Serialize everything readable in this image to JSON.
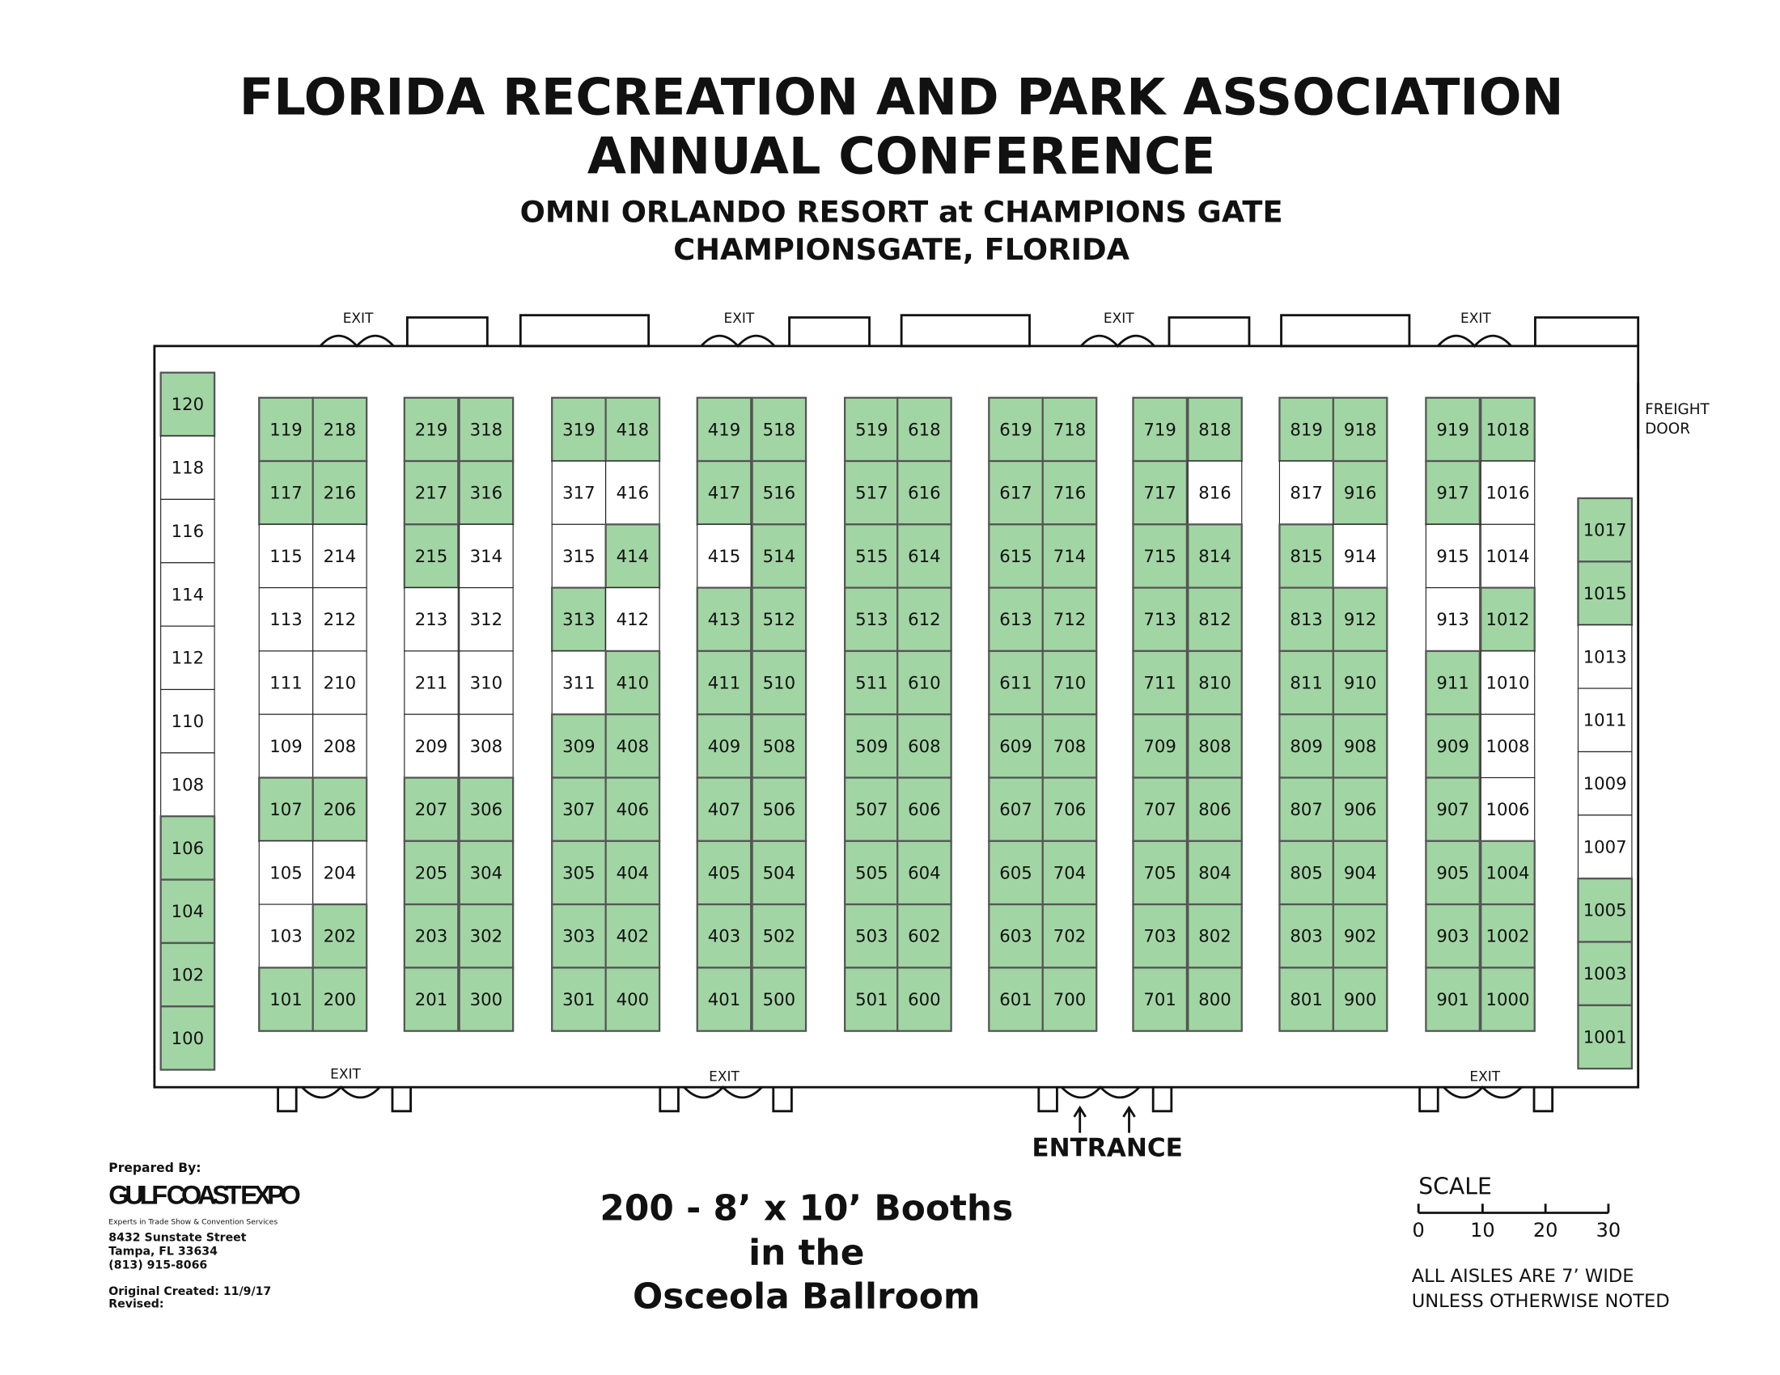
{
  "header": {
    "title_lines": [
      "FLORIDA RECREATION AND PARK ASSOCIATION",
      "ANNUAL CONFERENCE"
    ],
    "subtitle_lines": [
      "OMNI ORLANDO RESORT at CHAMPIONS GATE",
      "CHAMPIONSGATE, FLORIDA"
    ]
  },
  "floor": {
    "columns": [
      [
        {
          "number": "119",
          "color": "#a2d5a4"
        },
        {
          "number": "117",
          "color": "#a2d5a4"
        },
        {
          "number": "115",
          "color": "#ffffff"
        },
        {
          "number": "113",
          "color": "#ffffff"
        },
        {
          "number": "111",
          "color": "#ffffff"
        },
        {
          "number": "109",
          "color": "#ffffff"
        },
        {
          "number": "107",
          "color": "#a2d5a4"
        },
        {
          "number": "105",
          "color": "#ffffff"
        },
        {
          "number": "103",
          "color": "#ffffff"
        },
        {
          "number": "101",
          "color": "#a2d5a4"
        }
      ],
      [
        {
          "number": "218",
          "color": "#a2d5a4"
        },
        {
          "number": "216",
          "color": "#a2d5a4"
        },
        {
          "number": "214",
          "color": "#ffffff"
        },
        {
          "number": "212",
          "color": "#ffffff"
        },
        {
          "number": "210",
          "color": "#ffffff"
        },
        {
          "number": "208",
          "color": "#ffffff"
        },
        {
          "number": "206",
          "color": "#a2d5a4"
        },
        {
          "number": "204",
          "color": "#ffffff"
        },
        {
          "number": "202",
          "color": "#a2d5a4"
        },
        {
          "number": "200",
          "color": "#a2d5a4"
        }
      ],
      [
        {
          "number": "219",
          "color": "#a2d5a4"
        },
        {
          "number": "217",
          "color": "#a2d5a4"
        },
        {
          "number": "215",
          "color": "#a2d5a4"
        },
        {
          "number": "213",
          "color": "#ffffff"
        },
        {
          "number": "211",
          "color": "#ffffff"
        },
        {
          "number": "209",
          "color": "#ffffff"
        },
        {
          "number": "207",
          "color": "#a2d5a4"
        },
        {
          "number": "205",
          "color": "#a2d5a4"
        },
        {
          "number": "203",
          "color": "#a2d5a4"
        },
        {
          "number": "201",
          "color": "#a2d5a4"
        }
      ],
      [
        {
          "number": "318",
          "color": "#a2d5a4"
        },
        {
          "number": "316",
          "color": "#a2d5a4"
        },
        {
          "number": "314",
          "color": "#ffffff"
        },
        {
          "number": "312",
          "color": "#ffffff"
        },
        {
          "number": "310",
          "color": "#ffffff"
        },
        {
          "number": "308",
          "color": "#ffffff"
        },
        {
          "number": "306",
          "color": "#a2d5a4"
        },
        {
          "number": "304",
          "color": "#a2d5a4"
        },
        {
          "number": "302",
          "color": "#a2d5a4"
        },
        {
          "number": "300",
          "color": "#a2d5a4"
        }
      ],
      [
        {
          "number": "319",
          "color": "#a2d5a4"
        },
        {
          "number": "317",
          "color": "#ffffff"
        },
        {
          "number": "315",
          "color": "#ffffff"
        },
        {
          "number": "313",
          "color": "#a2d5a4"
        },
        {
          "number": "311",
          "color": "#ffffff"
        },
        {
          "number": "309",
          "color": "#a2d5a4"
        },
        {
          "number": "307",
          "color": "#a2d5a4"
        },
        {
          "number": "305",
          "color": "#a2d5a4"
        },
        {
          "number": "303",
          "color": "#a2d5a4"
        },
        {
          "number": "301",
          "color": "#a2d5a4"
        }
      ],
      [
        {
          "number": "418",
          "color": "#a2d5a4"
        },
        {
          "number": "416",
          "color": "#ffffff"
        },
        {
          "number": "414",
          "color": "#a2d5a4"
        },
        {
          "number": "412",
          "color": "#ffffff"
        },
        {
          "number": "410",
          "color": "#a2d5a4"
        },
        {
          "number": "408",
          "color": "#a2d5a4"
        },
        {
          "number": "406",
          "color": "#a2d5a4"
        },
        {
          "number": "404",
          "color": "#a2d5a4"
        },
        {
          "number": "402",
          "color": "#a2d5a4"
        },
        {
          "number": "400",
          "color": "#a2d5a4"
        }
      ],
      [
        {
          "number": "419",
          "color": "#a2d5a4"
        },
        {
          "number": "417",
          "color": "#a2d5a4"
        },
        {
          "number": "415",
          "color": "#ffffff"
        },
        {
          "number": "413",
          "color": "#a2d5a4"
        },
        {
          "number": "411",
          "color": "#a2d5a4"
        },
        {
          "number": "409",
          "color": "#a2d5a4"
        },
        {
          "number": "407",
          "color": "#a2d5a4"
        },
        {
          "number": "405",
          "color": "#a2d5a4"
        },
        {
          "number": "403",
          "color": "#a2d5a4"
        },
        {
          "number": "401",
          "color": "#a2d5a4"
        }
      ],
      [
        {
          "number": "518",
          "color": "#a2d5a4"
        },
        {
          "number": "516",
          "color": "#a2d5a4"
        },
        {
          "number": "514",
          "color": "#a2d5a4"
        },
        {
          "number": "512",
          "color": "#a2d5a4"
        },
        {
          "number": "510",
          "color": "#a2d5a4"
        },
        {
          "number": "508",
          "color": "#a2d5a4"
        },
        {
          "number": "506",
          "color": "#a2d5a4"
        },
        {
          "number": "504",
          "color": "#a2d5a4"
        },
        {
          "number": "502",
          "color": "#a2d5a4"
        },
        {
          "number": "500",
          "color": "#a2d5a4"
        }
      ],
      [
        {
          "number": "519",
          "color": "#a2d5a4"
        },
        {
          "number": "517",
          "color": "#a2d5a4"
        },
        {
          "number": "515",
          "color": "#a2d5a4"
        },
        {
          "number": "513",
          "color": "#a2d5a4"
        },
        {
          "number": "511",
          "color": "#a2d5a4"
        },
        {
          "number": "509",
          "color": "#a2d5a4"
        },
        {
          "number": "507",
          "color": "#a2d5a4"
        },
        {
          "number": "505",
          "color": "#a2d5a4"
        },
        {
          "number": "503",
          "color": "#a2d5a4"
        },
        {
          "number": "501",
          "color": "#a2d5a4"
        }
      ],
      [
        {
          "number": "618",
          "color": "#a2d5a4"
        },
        {
          "number": "616",
          "color": "#a2d5a4"
        },
        {
          "number": "614",
          "color": "#a2d5a4"
        },
        {
          "number": "612",
          "color": "#a2d5a4"
        },
        {
          "number": "610",
          "color": "#a2d5a4"
        },
        {
          "number": "608",
          "color": "#a2d5a4"
        },
        {
          "number": "606",
          "color": "#a2d5a4"
        },
        {
          "number": "604",
          "color": "#a2d5a4"
        },
        {
          "number": "602",
          "color": "#a2d5a4"
        },
        {
          "number": "600",
          "color": "#a2d5a4"
        }
      ],
      [
        {
          "number": "619",
          "color": "#a2d5a4"
        },
        {
          "number": "617",
          "color": "#a2d5a4"
        },
        {
          "number": "615",
          "color": "#a2d5a4"
        },
        {
          "number": "613",
          "color": "#a2d5a4"
        },
        {
          "number": "611",
          "color": "#a2d5a4"
        },
        {
          "number": "609",
          "color": "#a2d5a4"
        },
        {
          "number": "607",
          "color": "#a2d5a4"
        },
        {
          "number": "605",
          "color": "#a2d5a4"
        },
        {
          "number": "603",
          "color": "#a2d5a4"
        },
        {
          "number": "601",
          "color": "#a2d5a4"
        }
      ],
      [
        {
          "number": "718",
          "color": "#a2d5a4"
        },
        {
          "number": "716",
          "color": "#a2d5a4"
        },
        {
          "number": "714",
          "color": "#a2d5a4"
        },
        {
          "number": "712",
          "color": "#a2d5a4"
        },
        {
          "number": "710",
          "color": "#a2d5a4"
        },
        {
          "number": "708",
          "color": "#a2d5a4"
        },
        {
          "number": "706",
          "color": "#a2d5a4"
        },
        {
          "number": "704",
          "color": "#a2d5a4"
        },
        {
          "number": "702",
          "color": "#a2d5a4"
        },
        {
          "number": "700",
          "color": "#a2d5a4"
        }
      ],
      [
        {
          "number": "719",
          "color": "#a2d5a4"
        },
        {
          "number": "717",
          "color": "#a2d5a4"
        },
        {
          "number": "715",
          "color": "#a2d5a4"
        },
        {
          "number": "713",
          "color": "#a2d5a4"
        },
        {
          "number": "711",
          "color": "#a2d5a4"
        },
        {
          "number": "709",
          "color": "#a2d5a4"
        },
        {
          "number": "707",
          "color": "#a2d5a4"
        },
        {
          "number": "705",
          "color": "#a2d5a4"
        },
        {
          "number": "703",
          "color": "#a2d5a4"
        },
        {
          "number": "701",
          "color": "#a2d5a4"
        }
      ],
      [
        {
          "number": "818",
          "color": "#a2d5a4"
        },
        {
          "number": "816",
          "color": "#ffffff"
        },
        {
          "number": "814",
          "color": "#a2d5a4"
        },
        {
          "number": "812",
          "color": "#a2d5a4"
        },
        {
          "number": "810",
          "color": "#a2d5a4"
        },
        {
          "number": "808",
          "color": "#a2d5a4"
        },
        {
          "number": "806",
          "color": "#a2d5a4"
        },
        {
          "number": "804",
          "color": "#a2d5a4"
        },
        {
          "number": "802",
          "color": "#a2d5a4"
        },
        {
          "number": "800",
          "color": "#a2d5a4"
        }
      ],
      [
        {
          "number": "819",
          "color": "#a2d5a4"
        },
        {
          "number": "817",
          "color": "#ffffff"
        },
        {
          "number": "815",
          "color": "#a2d5a4"
        },
        {
          "number": "813",
          "color": "#a2d5a4"
        },
        {
          "number": "811",
          "color": "#a2d5a4"
        },
        {
          "number": "809",
          "color": "#a2d5a4"
        },
        {
          "number": "807",
          "color": "#a2d5a4"
        },
        {
          "number": "805",
          "color": "#a2d5a4"
        },
        {
          "number": "803",
          "color": "#a2d5a4"
        },
        {
          "number": "801",
          "color": "#a2d5a4"
        }
      ],
      [
        {
          "number": "918",
          "color": "#a2d5a4"
        },
        {
          "number": "916",
          "color": "#a2d5a4"
        },
        {
          "number": "914",
          "color": "#ffffff"
        },
        {
          "number": "912",
          "color": "#a2d5a4"
        },
        {
          "number": "910",
          "color": "#a2d5a4"
        },
        {
          "number": "908",
          "color": "#a2d5a4"
        },
        {
          "number": "906",
          "color": "#a2d5a4"
        },
        {
          "number": "904",
          "color": "#a2d5a4"
        },
        {
          "number": "902",
          "color": "#a2d5a4"
        },
        {
          "number": "900",
          "color": "#a2d5a4"
        }
      ],
      [
        {
          "number": "919",
          "color": "#a2d5a4"
        },
        {
          "number": "917",
          "color": "#a2d5a4"
        },
        {
          "number": "915",
          "color": "#ffffff"
        },
        {
          "number": "913",
          "color": "#ffffff"
        },
        {
          "number": "911",
          "color": "#a2d5a4"
        },
        {
          "number": "909",
          "color": "#a2d5a4"
        },
        {
          "number": "907",
          "color": "#a2d5a4"
        },
        {
          "number": "905",
          "color": "#a2d5a4"
        },
        {
          "number": "903",
          "color": "#a2d5a4"
        },
        {
          "number": "901",
          "color": "#a2d5a4"
        }
      ],
      [
        {
          "number": "1018",
          "color": "#a2d5a4"
        },
        {
          "number": "1016",
          "color": "#ffffff"
        },
        {
          "number": "1014",
          "color": "#ffffff"
        },
        {
          "number": "1012",
          "color": "#a2d5a4"
        },
        {
          "number": "1010",
          "color": "#ffffff"
        },
        {
          "number": "1008",
          "color": "#ffffff"
        },
        {
          "number": "1006",
          "color": "#ffffff"
        },
        {
          "number": "1004",
          "color": "#a2d5a4"
        },
        {
          "number": "1002",
          "color": "#a2d5a4"
        },
        {
          "number": "1000",
          "color": "#a2d5a4"
        }
      ]
    ],
    "left_wall": [
      {
        "number": "120",
        "color": "#a2d5a4"
      },
      {
        "number": "118",
        "color": "#ffffff"
      },
      {
        "number": "116",
        "color": "#ffffff"
      },
      {
        "number": "114",
        "color": "#ffffff"
      },
      {
        "number": "112",
        "color": "#ffffff"
      },
      {
        "number": "110",
        "color": "#ffffff"
      },
      {
        "number": "108",
        "color": "#ffffff"
      },
      {
        "number": "106",
        "color": "#a2d5a4"
      },
      {
        "number": "104",
        "color": "#a2d5a4"
      },
      {
        "number": "102",
        "color": "#a2d5a4"
      },
      {
        "number": "100",
        "color": "#a2d5a4"
      }
    ],
    "right_wall": [
      {
        "number": "1017",
        "color": "#a2d5a4"
      },
      {
        "number": "1015",
        "color": "#a2d5a4"
      },
      {
        "number": "1013",
        "color": "#ffffff"
      },
      {
        "number": "1011",
        "color": "#ffffff"
      },
      {
        "number": "1009",
        "color": "#ffffff"
      },
      {
        "number": "1007",
        "color": "#ffffff"
      },
      {
        "number": "1005",
        "color": "#a2d5a4"
      },
      {
        "number": "1003",
        "color": "#a2d5a4"
      },
      {
        "number": "1001",
        "color": "#a2d5a4"
      }
    ],
    "top_exits": [
      "EXIT",
      "EXIT",
      "EXIT",
      "EXIT"
    ],
    "bottom_exits": [
      "EXIT",
      "EXIT",
      "EXIT"
    ],
    "freight_door_lines": [
      "FREIGHT",
      "DOOR"
    ],
    "entrance": "ENTRANCE"
  },
  "footer": {
    "prepared_by": "Prepared By:",
    "company": "GULF COAST EXPO",
    "tagline": "Experts in Trade Show & Convention Services",
    "address_lines": [
      "8432 Sunstate Street",
      "Tampa, FL 33634",
      "(813) 915-8066"
    ],
    "original_created": "Original Created: 11/9/17",
    "revised": "Revised:",
    "summary_lines": [
      "200 - 8’ x 10’ Booths",
      "in the",
      "Osceola Ballroom"
    ],
    "scale_title": "SCALE",
    "scale_ticks": [
      0,
      10,
      20,
      30
    ],
    "notes": [
      "ALL AISLES ARE 7’ WIDE",
      "UNLESS OTHERWISE NOTED"
    ]
  }
}
